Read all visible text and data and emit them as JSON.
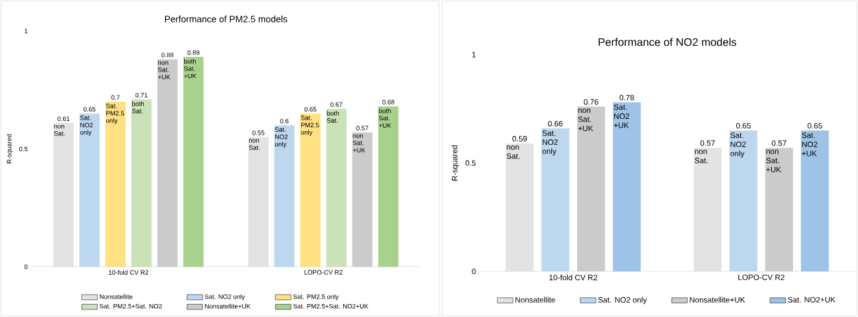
{
  "chart_data": [
    {
      "type": "bar",
      "title": "Performance of PM2.5 models",
      "ylabel": "R-squared",
      "categories": [
        "10-fold CV R2",
        "LOPO-CV R2"
      ],
      "series": [
        {
          "name": "Nonsatellite",
          "color": "#e3e3e3",
          "values": [
            0.61,
            0.55
          ]
        },
        {
          "name": "Sat. NO2 only",
          "color": "#bdd7ee",
          "values": [
            0.65,
            0.6
          ]
        },
        {
          "name": "Sat. PM2.5 only",
          "color": "#ffe083",
          "values": [
            0.7,
            0.65
          ]
        },
        {
          "name": "Sat. PM2.5+Sat. NO2",
          "color": "#c9e2b8",
          "values": [
            0.71,
            0.67
          ]
        },
        {
          "name": "Nonsatellite+UK",
          "color": "#cbcbcb",
          "values": [
            0.88,
            0.57
          ]
        },
        {
          "name": "Sat. PM2.5+Sat. NO2+UK",
          "color": "#a9d18e",
          "values": [
            0.89,
            0.68
          ]
        }
      ],
      "ylim": [
        0,
        1
      ],
      "yticks": [
        0,
        0.5,
        1
      ],
      "data_labels": true,
      "legend": "bottom",
      "annotations": [
        "non Sat.",
        "Sat. NO2 only",
        "Sat. PM2.5 only",
        "both Sat.",
        "non Sat. +UK",
        "both Sat. +UK",
        "non Sat.",
        "Sat. NO2 only",
        "Sat. PM2.5 only",
        "both Sat.",
        "non Sat. +UK",
        "both Sat. +UK"
      ]
    },
    {
      "type": "bar",
      "title": "Performance of NO2 models",
      "ylabel": "R-squared",
      "categories": [
        "10-fold CV R2",
        "LOPO-CV R2"
      ],
      "series": [
        {
          "name": "Nonsatellite",
          "color": "#e3e3e3",
          "values": [
            0.59,
            0.57
          ]
        },
        {
          "name": "Sat. NO2 only",
          "color": "#bdd7ee",
          "values": [
            0.66,
            0.65
          ]
        },
        {
          "name": "Nonsatellite+UK",
          "color": "#cbcbcb",
          "values": [
            0.76,
            0.57
          ]
        },
        {
          "name": "Sat. NO2+UK",
          "color": "#9dc3e6",
          "values": [
            0.78,
            0.65
          ]
        }
      ],
      "ylim": [
        0,
        1
      ],
      "yticks": [
        0,
        0.5,
        1
      ],
      "data_labels": true,
      "legend": "bottom",
      "annotations": [
        "non Sat.",
        "Sat. NO2 only",
        "non Sat. +UK",
        "Sat. NO2 +UK",
        "non Sat.",
        "Sat. NO2 only",
        "non Sat. +UK",
        "Sat. NO2 +UK"
      ]
    }
  ]
}
